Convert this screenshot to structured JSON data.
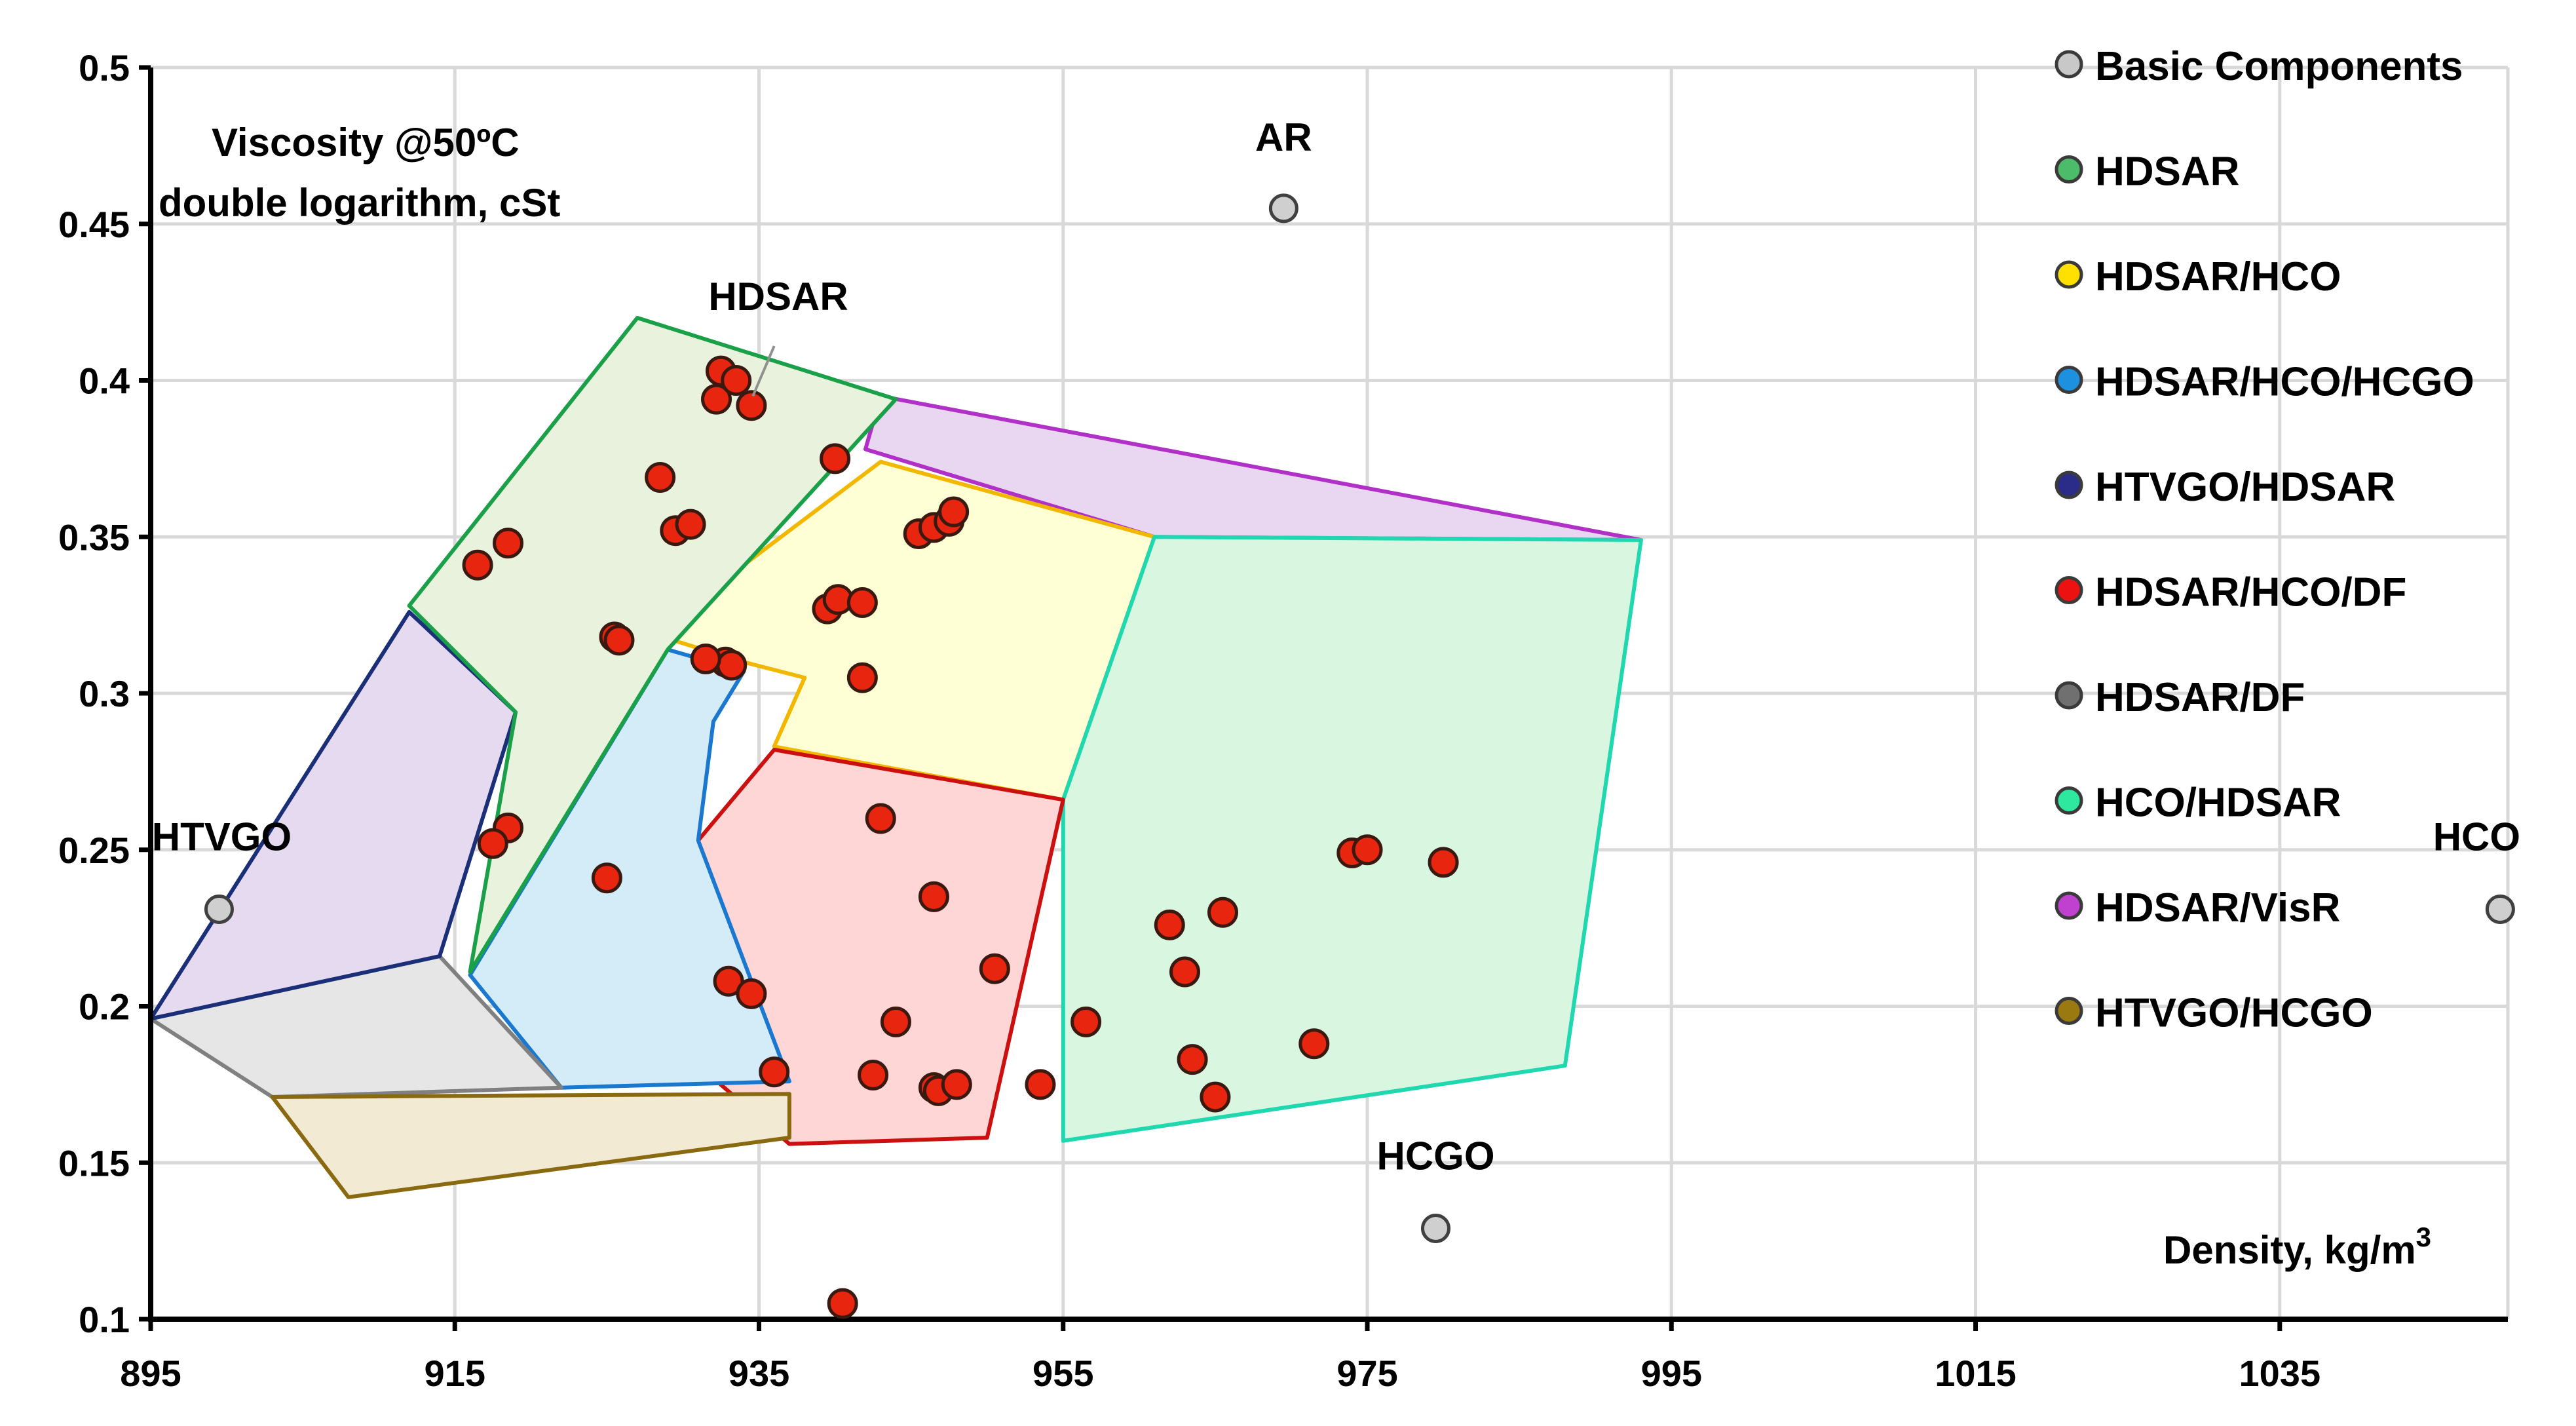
{
  "chart_data": {
    "type": "scatter",
    "title_line1": "Viscosity @50ºC",
    "title_line2": "double logarithm, cSt",
    "xlabel": "Density, kg/m",
    "xlabel_sup": "3",
    "xlim": [
      895,
      1050
    ],
    "ylim": [
      0.1,
      0.5
    ],
    "x_ticks": [
      895,
      915,
      935,
      955,
      975,
      995,
      1015,
      1035
    ],
    "y_ticks": [
      0.1,
      0.15,
      0.2,
      0.25,
      0.3,
      0.35,
      0.4,
      0.45,
      0.5
    ],
    "y_tick_labels": [
      "0.1",
      "0.15",
      "0.2",
      "0.25",
      "0.3",
      "0.35",
      "0.4",
      "0.45",
      "0.5"
    ],
    "grid": true,
    "legend": [
      {
        "name": "Basic Components",
        "color": "#c8c8c8"
      },
      {
        "name": "HDSAR",
        "color": "#4cbb6a"
      },
      {
        "name": "HDSAR/HCO",
        "color": "#ffe000"
      },
      {
        "name": "HDSAR/HCO/HCGO",
        "color": "#1e90e0"
      },
      {
        "name": "HTVGO/HDSAR",
        "color": "#2b2b8a"
      },
      {
        "name": "HDSAR/HCO/DF",
        "color": "#ee1111"
      },
      {
        "name": "HDSAR/DF",
        "color": "#707070"
      },
      {
        "name": "HCO/HDSAR",
        "color": "#2ee8a0"
      },
      {
        "name": "HDSAR/VisR",
        "color": "#c040d0"
      },
      {
        "name": "HTVGO/HCGO",
        "color": "#9a7a10"
      }
    ],
    "basic_components": [
      {
        "name": "AR",
        "x": 969.5,
        "y": 0.455
      },
      {
        "name": "HTVGO",
        "x": 899.5,
        "y": 0.231
      },
      {
        "name": "HCGO",
        "x": 979.5,
        "y": 0.129
      },
      {
        "name": "HCO",
        "x": 1049.5,
        "y": 0.231
      }
    ],
    "hdsar_label": "HDSAR",
    "regions": [
      {
        "name": "HDSAR/VisR",
        "fill": "#e9d6f0",
        "stroke": "#b030c8",
        "points": [
          [
            943,
            0.395
          ],
          [
            993,
            0.349
          ],
          [
            961,
            0.35
          ],
          [
            942,
            0.378
          ]
        ]
      },
      {
        "name": "HDSAR/HCO",
        "fill": "#ffffd6",
        "stroke": "#f2b800",
        "points": [
          [
            943,
            0.374
          ],
          [
            961,
            0.35
          ],
          [
            955,
            0.266
          ],
          [
            936,
            0.283
          ],
          [
            938,
            0.305
          ],
          [
            934,
            0.31
          ],
          [
            928,
            0.319
          ]
        ]
      },
      {
        "name": "HCO/HDSAR",
        "fill": "#d8f6e0",
        "stroke": "#20d8b0",
        "points": [
          [
            961,
            0.35
          ],
          [
            993,
            0.349
          ],
          [
            988,
            0.181
          ],
          [
            955,
            0.157
          ],
          [
            955,
            0.266
          ]
        ]
      },
      {
        "name": "HDSAR/HCO/DF",
        "fill": "#ffd6d6",
        "stroke": "#cc1010",
        "points": [
          [
            936,
            0.282
          ],
          [
            955,
            0.266
          ],
          [
            950,
            0.158
          ],
          [
            937,
            0.156
          ],
          [
            932,
            0.177
          ],
          [
            931,
            0.253
          ]
        ]
      },
      {
        "name": "HDSAR/HCO/HCGO",
        "fill": "#d4ecf8",
        "stroke": "#1a78d0",
        "points": [
          [
            916,
            0.21
          ],
          [
            929,
            0.314
          ],
          [
            934,
            0.307
          ],
          [
            932,
            0.291
          ],
          [
            931,
            0.253
          ],
          [
            937,
            0.176
          ],
          [
            922,
            0.174
          ]
        ]
      },
      {
        "name": "HDSAR/DF",
        "fill": "#e6e6e6",
        "stroke": "#808080",
        "points": [
          [
            895,
            0.196
          ],
          [
            914,
            0.216
          ],
          [
            922,
            0.174
          ],
          [
            903,
            0.171
          ]
        ]
      },
      {
        "name": "HTVGO/HCGO",
        "fill": "#f2ead2",
        "stroke": "#8a6a10",
        "points": [
          [
            903,
            0.171
          ],
          [
            937,
            0.172
          ],
          [
            937,
            0.158
          ],
          [
            908,
            0.139
          ]
        ]
      },
      {
        "name": "HTVGO/HDSAR",
        "fill": "#e6daf0",
        "stroke": "#1a2f78",
        "points": [
          [
            895,
            0.196
          ],
          [
            914,
            0.216
          ],
          [
            919,
            0.294
          ],
          [
            912,
            0.326
          ]
        ]
      },
      {
        "name": "HDSAR",
        "fill": "#e9f2dc",
        "stroke": "#1aa048",
        "points": [
          [
            912,
            0.328
          ],
          [
            927,
            0.42
          ],
          [
            944,
            0.394
          ],
          [
            929,
            0.314
          ],
          [
            916,
            0.211
          ],
          [
            919,
            0.294
          ]
        ]
      }
    ],
    "points": [
      [
        916.5,
        0.341
      ],
      [
        918.5,
        0.348
      ],
      [
        928.5,
        0.369
      ],
      [
        929.5,
        0.352
      ],
      [
        930.5,
        0.354
      ],
      [
        925.5,
        0.318
      ],
      [
        925.8,
        0.317
      ],
      [
        932.2,
        0.394
      ],
      [
        932.5,
        0.403
      ],
      [
        933.5,
        0.4
      ],
      [
        934.5,
        0.392
      ],
      [
        940,
        0.375
      ],
      [
        945.5,
        0.351
      ],
      [
        946.5,
        0.353
      ],
      [
        947.5,
        0.355
      ],
      [
        947.8,
        0.358
      ],
      [
        939.5,
        0.327
      ],
      [
        940.2,
        0.33
      ],
      [
        941.8,
        0.329
      ],
      [
        941.8,
        0.305
      ],
      [
        932.8,
        0.31
      ],
      [
        933.2,
        0.309
      ],
      [
        931.5,
        0.311
      ],
      [
        918.5,
        0.257
      ],
      [
        917.5,
        0.252
      ],
      [
        925,
        0.241
      ],
      [
        943,
        0.26
      ],
      [
        946.5,
        0.235
      ],
      [
        950.5,
        0.212
      ],
      [
        942.5,
        0.178
      ],
      [
        944,
        0.195
      ],
      [
        946.5,
        0.174
      ],
      [
        946.8,
        0.173
      ],
      [
        948,
        0.175
      ],
      [
        953.5,
        0.175
      ],
      [
        956.5,
        0.195
      ],
      [
        933,
        0.208
      ],
      [
        934.5,
        0.204
      ],
      [
        936,
        0.179
      ],
      [
        940.5,
        0.105
      ],
      [
        962,
        0.226
      ],
      [
        963,
        0.211
      ],
      [
        965.5,
        0.23
      ],
      [
        963.5,
        0.183
      ],
      [
        965,
        0.171
      ],
      [
        974,
        0.249
      ],
      [
        975,
        0.25
      ],
      [
        980,
        0.246
      ],
      [
        971.5,
        0.188
      ]
    ]
  }
}
